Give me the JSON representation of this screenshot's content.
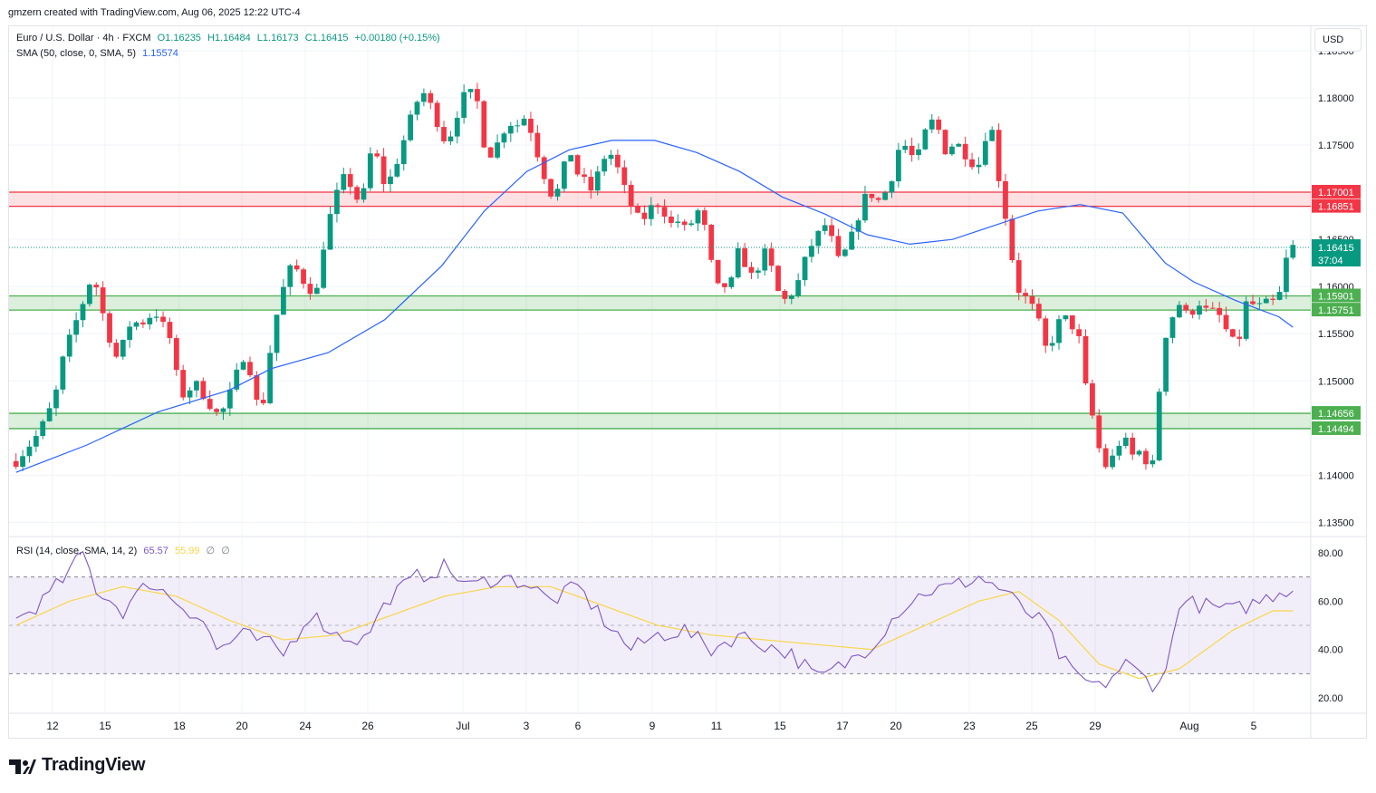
{
  "header": {
    "created_by": "gmzern created with TradingView.com, Aug 06, 2025 12:22 UTC-4"
  },
  "legend": {
    "symbol": "Euro / U.S. Dollar · 4h · FXCM",
    "open": "O1.16235",
    "high": "H1.16484",
    "low": "L1.16173",
    "close": "C1.16415",
    "change": "+0.00180 (+0.15%)",
    "sma_label": "SMA (50, close, 0, SMA, 5)",
    "sma_value": "1.15574",
    "rsi_label": "RSI (14, close, SMA, 14, 2)",
    "rsi_value": "65.57",
    "rsi_ma_value": "55.99",
    "rsi_extra1": "∅",
    "rsi_extra2": "∅"
  },
  "currency_button": "USD",
  "brand": "TradingView",
  "colors": {
    "up": "#089981",
    "down": "#f23645",
    "sma": "#2962ff",
    "rsi": "#7e57c2",
    "rsi_ma": "#f7d64a",
    "resistance_zone": "#f23645",
    "support_zone": "#4caf50"
  },
  "chart_data": {
    "type": "candlestick",
    "price_axis": {
      "ticks": [
        1.135,
        1.14,
        1.145,
        1.15,
        1.155,
        1.16,
        1.165,
        1.17,
        1.175,
        1.18,
        1.185
      ],
      "tick_labels": [
        "1.13500",
        "1.14000",
        "1.14500",
        "1.15000",
        "1.15500",
        "1.16000",
        "1.16500",
        "1.17000",
        "1.17500",
        "1.18000",
        "1.18500"
      ],
      "range": [
        1.1335,
        1.1875
      ]
    },
    "time_axis": {
      "labels": [
        "12",
        "15",
        "18",
        "20",
        "24",
        "26",
        "Jul",
        "3",
        "6",
        "9",
        "11",
        "15",
        "17",
        "20",
        "23",
        "25",
        "29",
        "Aug",
        "5"
      ]
    },
    "zones": [
      {
        "kind": "resistance",
        "top": 1.17001,
        "bottom": 1.16851,
        "top_label": "1.17001",
        "bottom_label": "1.16851"
      },
      {
        "kind": "support",
        "top": 1.15901,
        "bottom": 1.15751,
        "top_label": "1.15901",
        "bottom_label": "1.15751"
      },
      {
        "kind": "support",
        "top": 1.14656,
        "bottom": 1.14494,
        "top_label": "1.14656",
        "bottom_label": "1.14494"
      }
    ],
    "last_price": {
      "value": 1.16415,
      "label": "1.16415",
      "countdown": "37:04"
    },
    "price_path": [
      [
        0,
        1.1415
      ],
      [
        3,
        1.1445
      ],
      [
        5,
        1.148
      ],
      [
        6,
        1.152
      ],
      [
        7,
        1.1545
      ],
      [
        9,
        1.159
      ],
      [
        10,
        1.1615
      ],
      [
        11,
        1.158
      ],
      [
        12,
        1.155
      ],
      [
        13,
        1.1525
      ],
      [
        14,
        1.154
      ],
      [
        15,
        1.1565
      ],
      [
        16,
        1.156
      ],
      [
        17,
        1.1565
      ],
      [
        18,
        1.1575
      ],
      [
        19,
        1.156
      ],
      [
        20,
        1.1545
      ],
      [
        21,
        1.15
      ],
      [
        22,
        1.148
      ],
      [
        23,
        1.15
      ],
      [
        24,
        1.149
      ],
      [
        25,
        1.1478
      ],
      [
        26,
        1.1465
      ],
      [
        27,
        1.147
      ],
      [
        28,
        1.149
      ],
      [
        29,
        1.1515
      ],
      [
        30,
        1.1535
      ],
      [
        31,
        1.148
      ],
      [
        32,
        1.147
      ],
      [
        33,
        1.153
      ],
      [
        34,
        1.1575
      ],
      [
        35,
        1.1605
      ],
      [
        36,
        1.1625
      ],
      [
        37,
        1.161
      ],
      [
        38,
        1.16
      ],
      [
        39,
        1.159
      ],
      [
        40,
        1.1645
      ],
      [
        41,
        1.168
      ],
      [
        42,
        1.1705
      ],
      [
        43,
        1.172
      ],
      [
        44,
        1.1695
      ],
      [
        45,
        1.169
      ],
      [
        46,
        1.174
      ],
      [
        47,
        1.1735
      ],
      [
        48,
        1.1705
      ],
      [
        49,
        1.172
      ],
      [
        50,
        1.1745
      ],
      [
        51,
        1.177
      ],
      [
        52,
        1.1795
      ],
      [
        53,
        1.1805
      ],
      [
        54,
        1.179
      ],
      [
        55,
        1.177
      ],
      [
        56,
        1.175
      ],
      [
        57,
        1.1775
      ],
      [
        58,
        1.18
      ],
      [
        59,
        1.1805
      ],
      [
        60,
        1.1795
      ],
      [
        61,
        1.1745
      ],
      [
        62,
        1.174
      ],
      [
        63,
        1.176
      ],
      [
        64,
        1.1775
      ],
      [
        65,
        1.177
      ],
      [
        66,
        1.178
      ],
      [
        67,
        1.1765
      ],
      [
        68,
        1.1735
      ],
      [
        69,
        1.171
      ],
      [
        70,
        1.169
      ],
      [
        71,
        1.172
      ],
      [
        72,
        1.1745
      ],
      [
        73,
        1.172
      ],
      [
        74,
        1.171
      ],
      [
        75,
        1.17
      ],
      [
        76,
        1.173
      ],
      [
        77,
        1.1745
      ],
      [
        78,
        1.173
      ],
      [
        79,
        1.1705
      ],
      [
        80,
        1.1685
      ],
      [
        81,
        1.167
      ],
      [
        82,
        1.1675
      ],
      [
        83,
        1.169
      ],
      [
        84,
        1.1685
      ],
      [
        85,
        1.1665
      ],
      [
        86,
        1.167
      ],
      [
        87,
        1.166
      ],
      [
        88,
        1.167
      ],
      [
        89,
        1.1685
      ],
      [
        90,
        1.164
      ],
      [
        91,
        1.1598
      ],
      [
        92,
        1.16
      ],
      [
        93,
        1.1605
      ],
      [
        94,
        1.164
      ],
      [
        95,
        1.162
      ],
      [
        96,
        1.1605
      ],
      [
        97,
        1.164
      ],
      [
        98,
        1.1625
      ],
      [
        99,
        1.1595
      ],
      [
        100,
        1.1585
      ],
      [
        101,
        1.1595
      ],
      [
        102,
        1.161
      ],
      [
        103,
        1.164
      ],
      [
        104,
        1.165
      ],
      [
        105,
        1.1668
      ],
      [
        106,
        1.165
      ],
      [
        107,
        1.1625
      ],
      [
        108,
        1.164
      ],
      [
        109,
        1.166
      ],
      [
        110,
        1.169
      ],
      [
        111,
        1.17
      ],
      [
        112,
        1.169
      ],
      [
        113,
        1.17
      ],
      [
        114,
        1.172
      ],
      [
        115,
        1.1755
      ],
      [
        116,
        1.1745
      ],
      [
        117,
        1.173
      ],
      [
        118,
        1.176
      ],
      [
        119,
        1.1775
      ],
      [
        120,
        1.1765
      ],
      [
        121,
        1.174
      ],
      [
        122,
        1.1755
      ],
      [
        123,
        1.1745
      ],
      [
        124,
        1.1735
      ],
      [
        125,
        1.1725
      ],
      [
        126,
        1.176
      ],
      [
        127,
        1.1765
      ],
      [
        128,
        1.17
      ],
      [
        129,
        1.166
      ],
      [
        130,
        1.16
      ],
      [
        131,
        1.159
      ],
      [
        132,
        1.158
      ],
      [
        133,
        1.156
      ],
      [
        134,
        1.153
      ],
      [
        135,
        1.155
      ],
      [
        136,
        1.157
      ],
      [
        137,
        1.156
      ],
      [
        138,
        1.1555
      ],
      [
        139,
        1.1495
      ],
      [
        140,
        1.146
      ],
      [
        141,
        1.142
      ],
      [
        142,
        1.1405
      ],
      [
        143,
        1.143
      ],
      [
        144,
        1.144
      ],
      [
        145,
        1.142
      ],
      [
        146,
        1.1425
      ],
      [
        147,
        1.1415
      ],
      [
        148,
        1.141
      ],
      [
        149,
        1.154
      ],
      [
        150,
        1.156
      ],
      [
        151,
        1.1585
      ],
      [
        152,
        1.157
      ],
      [
        153,
        1.1575
      ],
      [
        154,
        1.1585
      ],
      [
        155,
        1.157
      ],
      [
        156,
        1.1575
      ],
      [
        157,
        1.156
      ],
      [
        158,
        1.154
      ],
      [
        159,
        1.1545
      ],
      [
        160,
        1.1585
      ],
      [
        161,
        1.158
      ],
      [
        162,
        1.1578
      ],
      [
        163,
        1.1585
      ],
      [
        164,
        1.158
      ],
      [
        165,
        1.1626
      ],
      [
        166,
        1.1642
      ]
    ],
    "sma_path": [
      [
        0,
        1.1403
      ],
      [
        10,
        1.1432
      ],
      [
        20,
        1.1467
      ],
      [
        30,
        1.149
      ],
      [
        36,
        1.1513
      ],
      [
        44,
        1.153
      ],
      [
        52,
        1.1565
      ],
      [
        60,
        1.1622
      ],
      [
        66,
        1.168
      ],
      [
        72,
        1.1722
      ],
      [
        78,
        1.1745
      ],
      [
        84,
        1.1755
      ],
      [
        90,
        1.1755
      ],
      [
        96,
        1.1742
      ],
      [
        102,
        1.1722
      ],
      [
        108,
        1.1695
      ],
      [
        114,
        1.1677
      ],
      [
        120,
        1.1655
      ],
      [
        126,
        1.1645
      ],
      [
        132,
        1.165
      ],
      [
        138,
        1.1665
      ],
      [
        144,
        1.168
      ],
      [
        150,
        1.1687
      ],
      [
        156,
        1.1678
      ],
      [
        162,
        1.1625
      ],
      [
        166,
        1.1605
      ],
      [
        172,
        1.1585
      ],
      [
        178,
        1.1568
      ],
      [
        180,
        1.1557
      ]
    ],
    "rsi": {
      "axis_ticks": [
        20,
        40,
        60,
        80
      ],
      "tick_labels": [
        "20.00",
        "40.00",
        "60.00",
        "80.00"
      ],
      "levels": {
        "upper": 70,
        "middle": 50,
        "lower": 30
      },
      "range": [
        14,
        86
      ],
      "rsi_path": [
        [
          0,
          52
        ],
        [
          4,
          60
        ],
        [
          8,
          72
        ],
        [
          10,
          80
        ],
        [
          12,
          65
        ],
        [
          16,
          56
        ],
        [
          20,
          68
        ],
        [
          24,
          60
        ],
        [
          28,
          52
        ],
        [
          30,
          40
        ],
        [
          34,
          46
        ],
        [
          38,
          42
        ],
        [
          40,
          38
        ],
        [
          44,
          55
        ],
        [
          48,
          46
        ],
        [
          52,
          44
        ],
        [
          56,
          62
        ],
        [
          60,
          70
        ],
        [
          64,
          74
        ],
        [
          68,
          66
        ],
        [
          72,
          70
        ],
        [
          76,
          68
        ],
        [
          80,
          60
        ],
        [
          84,
          66
        ],
        [
          88,
          52
        ],
        [
          92,
          40
        ],
        [
          96,
          46
        ],
        [
          100,
          48
        ],
        [
          104,
          40
        ],
        [
          108,
          46
        ],
        [
          112,
          42
        ],
        [
          116,
          38
        ],
        [
          120,
          28
        ],
        [
          124,
          34
        ],
        [
          128,
          42
        ],
        [
          132,
          56
        ],
        [
          136,
          64
        ],
        [
          140,
          66
        ],
        [
          144,
          70
        ],
        [
          148,
          64
        ],
        [
          150,
          58
        ],
        [
          154,
          50
        ],
        [
          156,
          38
        ],
        [
          158,
          30
        ],
        [
          162,
          24
        ],
        [
          166,
          34
        ],
        [
          170,
          26
        ],
        [
          172,
          30
        ],
        [
          174,
          60
        ],
        [
          178,
          58
        ],
        [
          182,
          56
        ],
        [
          186,
          60
        ],
        [
          189,
          64
        ],
        [
          191,
          65.57
        ]
      ],
      "rsi_ma_path": [
        [
          0,
          50
        ],
        [
          8,
          60
        ],
        [
          16,
          66
        ],
        [
          24,
          62
        ],
        [
          32,
          52
        ],
        [
          40,
          44
        ],
        [
          48,
          46
        ],
        [
          56,
          54
        ],
        [
          64,
          62
        ],
        [
          72,
          66
        ],
        [
          80,
          66
        ],
        [
          88,
          58
        ],
        [
          96,
          50
        ],
        [
          104,
          46
        ],
        [
          112,
          44
        ],
        [
          120,
          42
        ],
        [
          128,
          40
        ],
        [
          136,
          50
        ],
        [
          144,
          60
        ],
        [
          150,
          64
        ],
        [
          156,
          52
        ],
        [
          162,
          34
        ],
        [
          168,
          28
        ],
        [
          174,
          32
        ],
        [
          182,
          48
        ],
        [
          188,
          56
        ],
        [
          191,
          55.99
        ]
      ]
    }
  }
}
